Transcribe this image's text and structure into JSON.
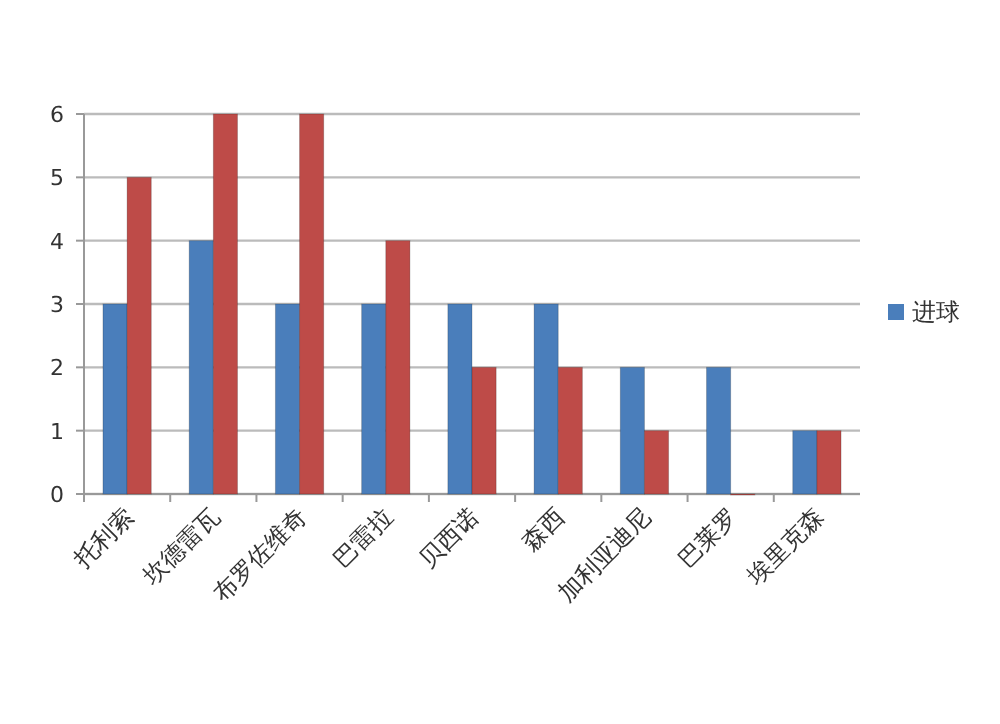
{
  "chart_data": {
    "type": "bar",
    "categories": [
      "托利索",
      "坎德雷瓦",
      "布罗佐维奇",
      "巴雷拉",
      "贝西诺",
      "森西",
      "加利亚迪尼",
      "巴莱罗",
      "埃里克森"
    ],
    "series": [
      {
        "name": "进球",
        "color": "#4a7ebb",
        "values": [
          3,
          4,
          3,
          3,
          3,
          3,
          2,
          2,
          1
        ]
      },
      {
        "color": "#be4b48",
        "values": [
          5,
          6,
          6,
          4,
          2,
          2,
          1,
          0,
          1
        ]
      }
    ],
    "ylim": [
      0,
      6
    ],
    "yticks": [
      0,
      1,
      2,
      3,
      4,
      5,
      6
    ],
    "grid": "y",
    "legend": "right"
  }
}
